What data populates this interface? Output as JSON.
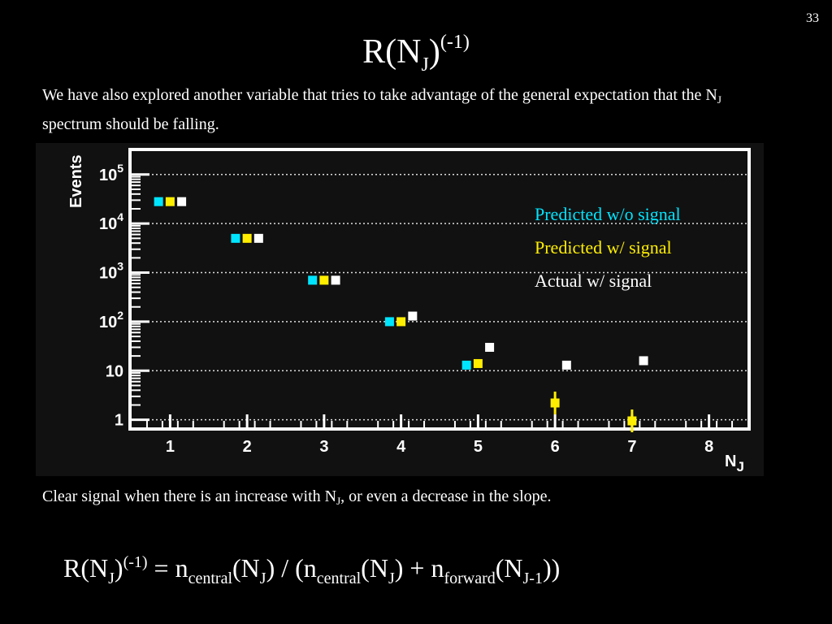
{
  "slide_number": "33",
  "title": {
    "base": "R(N",
    "sub": "J",
    "close": ")",
    "sup": "(-1)"
  },
  "intro": {
    "text1": "We have also explored another variable that tries to take advantage of the general expectation that the N",
    "sub": "J",
    "text2": " spectrum should be falling."
  },
  "conclusion": {
    "text1": "Clear signal when there is an increase with N",
    "sub": "J",
    "text2": ", or even a decrease in the slope."
  },
  "formula": {
    "p1": "R(N",
    "s1": "J",
    "p2": ")",
    "sup1": "(-1)",
    "p3": " = n",
    "s2": "central",
    "p4": "(N",
    "s3": "J",
    "p5": ") / (n",
    "s4": "central",
    "p6": "(N",
    "s5": "J",
    "p7": ") + n",
    "s6": "forward",
    "p8": "(N",
    "s7": "J-1",
    "p9": "))"
  },
  "colors": {
    "background": "#000000",
    "plot_background": "#111111",
    "predicted_without_signal": "#00e5ff",
    "predicted_with_signal": "#ffee00",
    "actual_with_signal": "#ffffff"
  },
  "chart_data": {
    "type": "scatter",
    "yscale": "log",
    "ylim": [
      0.7,
      300000
    ],
    "xlim": [
      0.5,
      8.5
    ],
    "xlabel": {
      "base": "N",
      "sub": "J"
    },
    "ylabel": "Events",
    "x_ticks": [
      "1",
      "2",
      "3",
      "4",
      "5",
      "6",
      "7",
      "8"
    ],
    "y_ticks": [
      {
        "value": 1,
        "label": "1"
      },
      {
        "value": 10,
        "label": "10"
      },
      {
        "value": 100,
        "label": "10",
        "sup": "2"
      },
      {
        "value": 1000,
        "label": "10",
        "sup": "3"
      },
      {
        "value": 10000,
        "label": "10",
        "sup": "4"
      },
      {
        "value": 100000,
        "label": "10",
        "sup": "5"
      }
    ],
    "grid": true,
    "legend_position": "top-right",
    "series": [
      {
        "name": "Predicted w/o signal",
        "color": "#00e5ff",
        "x": [
          1,
          2,
          3,
          4,
          5
        ],
        "y": [
          28000,
          5000,
          700,
          100,
          13
        ]
      },
      {
        "name": "Predicted w/ signal",
        "color": "#ffee00",
        "x": [
          1,
          2,
          3,
          4,
          5,
          6,
          7
        ],
        "y": [
          28000,
          5000,
          700,
          100,
          14,
          2.2,
          0.95
        ]
      },
      {
        "name": "Actual w/ signal",
        "color": "#ffffff",
        "x": [
          1,
          2,
          3,
          4,
          5,
          6,
          7
        ],
        "y": [
          28000,
          5000,
          700,
          130,
          30,
          13,
          16
        ]
      }
    ]
  }
}
